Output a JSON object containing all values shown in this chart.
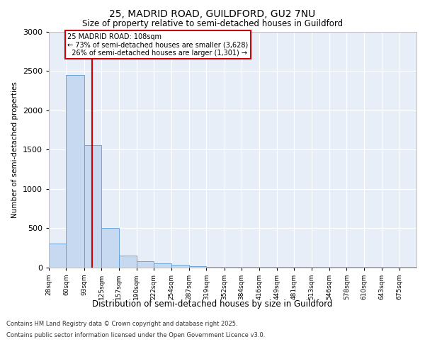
{
  "title1": "25, MADRID ROAD, GUILDFORD, GU2 7NU",
  "title2": "Size of property relative to semi-detached houses in Guildford",
  "xlabel": "Distribution of semi-detached houses by size in Guildford",
  "ylabel": "Number of semi-detached properties",
  "bin_labels": [
    "28sqm",
    "60sqm",
    "93sqm",
    "125sqm",
    "157sqm",
    "190sqm",
    "222sqm",
    "254sqm",
    "287sqm",
    "319sqm",
    "352sqm",
    "384sqm",
    "416sqm",
    "449sqm",
    "481sqm",
    "513sqm",
    "546sqm",
    "578sqm",
    "610sqm",
    "643sqm",
    "675sqm"
  ],
  "bin_edges": [
    28,
    60,
    93,
    125,
    157,
    190,
    222,
    254,
    287,
    319,
    352,
    384,
    416,
    449,
    481,
    513,
    546,
    578,
    610,
    643,
    675,
    707
  ],
  "values": [
    300,
    2450,
    1560,
    500,
    150,
    80,
    50,
    30,
    10,
    5,
    5,
    5,
    3,
    3,
    2,
    2,
    1,
    1,
    1,
    1,
    1
  ],
  "property_size": 108,
  "property_label": "25 MADRID ROAD: 108sqm",
  "pct_smaller": "73%",
  "n_smaller": "3,628",
  "pct_larger": "26%",
  "n_larger": "1,301",
  "bar_color": "#c6d9f0",
  "bar_edge_color": "#5b9bd5",
  "line_color": "#cc0000",
  "annotation_box_edge": "#cc0000",
  "ylim": [
    0,
    3000
  ],
  "yticks": [
    0,
    500,
    1000,
    1500,
    2000,
    2500,
    3000
  ],
  "footer1": "Contains HM Land Registry data © Crown copyright and database right 2025.",
  "footer2": "Contains public sector information licensed under the Open Government Licence v3.0.",
  "background_color": "#e8eef7"
}
